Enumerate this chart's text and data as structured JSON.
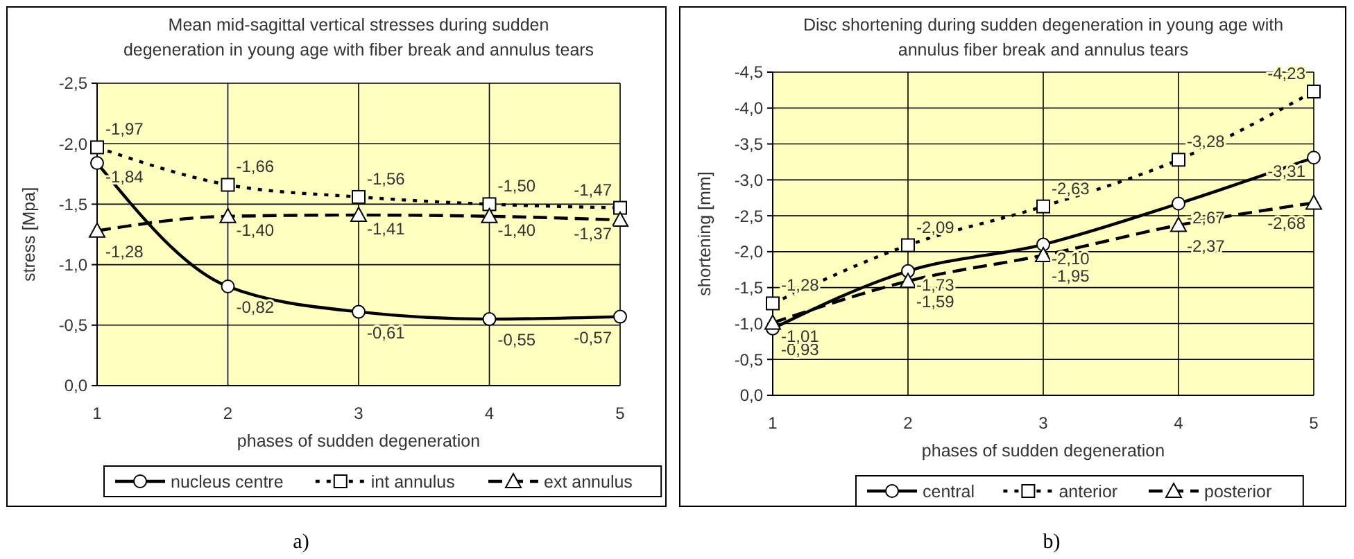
{
  "chart_data": [
    {
      "type": "line",
      "title": "Mean mid-sagittal vertical stresses during sudden degeneration in young age with fiber break and annulus tears",
      "xlabel": "phases of sudden degeneration",
      "ylabel": "stress [Mpa]",
      "x": [
        1,
        2,
        3,
        4,
        5
      ],
      "xlim": [
        1,
        5
      ],
      "xticks": [
        1,
        2,
        3,
        4,
        5
      ],
      "ylim": [
        0,
        -2.5
      ],
      "yticks": [
        {
          "value": 0,
          "label": "0,0"
        },
        {
          "value": -0.5,
          "label": "-0,5"
        },
        {
          "value": -1,
          "label": "-1,0"
        },
        {
          "value": -1.5,
          "label": "-1,5"
        },
        {
          "value": -2,
          "label": "-2,0"
        },
        {
          "value": -2.5,
          "label": "-2,5"
        }
      ],
      "grid": true,
      "legend": "bottom",
      "annotations": [
        "a)"
      ],
      "series": [
        {
          "name": "nucleus centre",
          "color": "#000000",
          "values": [
            -1.84,
            -0.82,
            -0.61,
            -0.55,
            -0.57
          ],
          "value_labels": [
            "-1,84",
            "-0,82",
            "-0,61",
            "-0,55",
            "-0,57"
          ],
          "marker": "circle",
          "line_style": "solid"
        },
        {
          "name": "int annulus",
          "color": "#000000",
          "values": [
            -1.97,
            -1.66,
            -1.56,
            -1.5,
            -1.47
          ],
          "value_labels": [
            "-1,97",
            "-1,66",
            "-1,56",
            "-1,50",
            "-1,47"
          ],
          "marker": "square",
          "line_style": "dotted"
        },
        {
          "name": "ext annulus",
          "color": "#000000",
          "values": [
            -1.28,
            -1.4,
            -1.41,
            -1.4,
            -1.37
          ],
          "value_labels": [
            "-1,28",
            "-1,40",
            "-1,41",
            "-1,40",
            "-1,37"
          ],
          "marker": "triangle",
          "line_style": "dashed"
        }
      ]
    },
    {
      "type": "line",
      "title": "Disc shortening during sudden degeneration in young age with annulus fiber break and annulus tears",
      "xlabel": "phases of sudden degeneration",
      "ylabel": "shortening [mm]",
      "x": [
        1,
        2,
        3,
        4,
        5
      ],
      "xlim": [
        1,
        5
      ],
      "xticks": [
        1,
        2,
        3,
        4,
        5
      ],
      "ylim": [
        0,
        -4.5
      ],
      "yticks": [
        {
          "value": 0,
          "label": "0,0"
        },
        {
          "value": -0.5,
          "label": "-0,5"
        },
        {
          "value": -1,
          "label": "-1,0"
        },
        {
          "value": -1.5,
          "label": "-1,5"
        },
        {
          "value": -2,
          "label": "-2,0"
        },
        {
          "value": -2.5,
          "label": "-2,5"
        },
        {
          "value": -3,
          "label": "-3,0"
        },
        {
          "value": -3.5,
          "label": "-3,5"
        },
        {
          "value": -4,
          "label": "-4,0"
        },
        {
          "value": -4.5,
          "label": "-4,5"
        }
      ],
      "grid": true,
      "legend": "bottom",
      "annotations": [
        "b)"
      ],
      "series": [
        {
          "name": "central",
          "color": "#000000",
          "values": [
            -0.93,
            -1.73,
            -2.1,
            -2.67,
            -3.31
          ],
          "value_labels": [
            "-0,93",
            "-1,73",
            "-2,10",
            "-2,67",
            "-3,31"
          ],
          "marker": "circle",
          "line_style": "solid"
        },
        {
          "name": "anterior",
          "color": "#000000",
          "values": [
            -1.28,
            -2.09,
            -2.63,
            -3.28,
            -4.23
          ],
          "value_labels": [
            "-1,28",
            "-2,09",
            "-2,63",
            "-3,28",
            "-4,23"
          ],
          "marker": "square",
          "line_style": "dotted"
        },
        {
          "name": "posterior",
          "color": "#000000",
          "values": [
            -1.01,
            -1.59,
            -1.95,
            -2.37,
            -2.68
          ],
          "value_labels": [
            "-1,01",
            "-1,59",
            "-1,95",
            "-2,37",
            "-2,68"
          ],
          "marker": "triangle",
          "line_style": "dashed"
        }
      ]
    }
  ]
}
